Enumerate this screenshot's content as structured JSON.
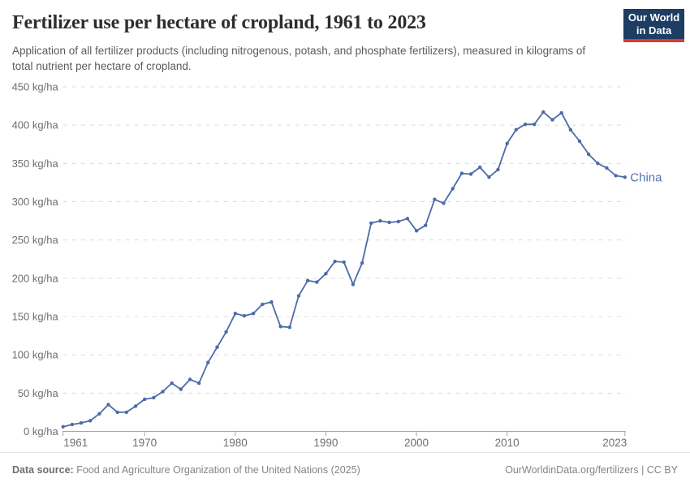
{
  "header": {
    "title": "Fertilizer use per hectare of cropland, 1961 to 2023",
    "subtitle": "Application of all fertilizer products (including nitrogenous, potash, and phosphate fertilizers), measured in kilograms of total nutrient per hectare of cropland."
  },
  "logo": {
    "line1": "Our World",
    "line2": "in Data",
    "bg_color": "#1d3d63",
    "bar_color": "#d93a32"
  },
  "footer": {
    "datasource_label": "Data source:",
    "datasource_text": "Food and Agriculture Organization of the United Nations (2025)",
    "citation": "OurWorldinData.org/fertilizers | CC BY"
  },
  "colors": {
    "line": "#4c6ba8",
    "series_label": "#5474ae",
    "grid": "#dcdcdc",
    "axis": "#a5a5a5",
    "tick_text": "#6e6e73"
  },
  "chart_data": {
    "type": "line",
    "title": "Fertilizer use per hectare of cropland, 1961 to 2023",
    "ylabel": "",
    "xlabel": "",
    "grid": "dashed-horizontal",
    "legend": "end-of-line-label",
    "y_axis": {
      "min": 0,
      "max": 450,
      "step": 50,
      "unit_suffix": " kg/ha"
    },
    "x_axis": {
      "range": [
        1961,
        2023
      ],
      "ticks": [
        1961,
        1970,
        1980,
        1990,
        2000,
        2010,
        2023
      ]
    },
    "series": [
      {
        "name": "China",
        "x": [
          1961,
          1962,
          1963,
          1964,
          1965,
          1966,
          1967,
          1968,
          1969,
          1970,
          1971,
          1972,
          1973,
          1974,
          1975,
          1976,
          1977,
          1978,
          1979,
          1980,
          1981,
          1982,
          1983,
          1984,
          1985,
          1986,
          1987,
          1988,
          1989,
          1990,
          1991,
          1992,
          1993,
          1994,
          1995,
          1996,
          1997,
          1998,
          1999,
          2000,
          2001,
          2002,
          2003,
          2004,
          2005,
          2006,
          2007,
          2008,
          2009,
          2010,
          2011,
          2012,
          2013,
          2014,
          2015,
          2016,
          2017,
          2018,
          2019,
          2020,
          2021,
          2022,
          2023
        ],
        "values": [
          6,
          9,
          11,
          14,
          23,
          35,
          25,
          25,
          33,
          42,
          44,
          52,
          63,
          55,
          68,
          63,
          90,
          110,
          130,
          154,
          151,
          154,
          166,
          169,
          137,
          136,
          177,
          197,
          195,
          206,
          222,
          221,
          192,
          220,
          272,
          275,
          273,
          274,
          278,
          262,
          269,
          303,
          298,
          317,
          337,
          336,
          345,
          332,
          342,
          376,
          394,
          401,
          401,
          417,
          407,
          416,
          394,
          379,
          362,
          350,
          344,
          334,
          332
        ]
      }
    ]
  }
}
